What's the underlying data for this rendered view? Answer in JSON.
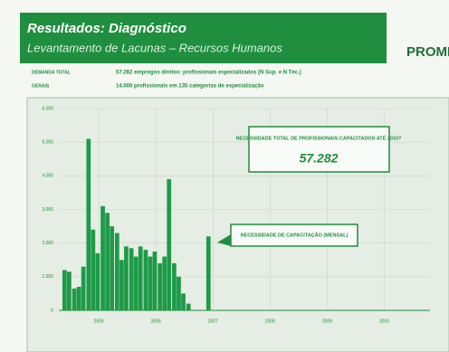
{
  "header": {
    "title": "Resultados: Diagnóstico",
    "subtitle": "Levantamento de Lacunas – Recursos Humanos",
    "logo": "PROMI"
  },
  "info": [
    {
      "label": "DEMANDA TOTAL",
      "text": "57.282 empregos diretos: profissionais especializados (N Sup. e N Téc.)"
    },
    {
      "label": "GERAIS",
      "text": "14.000 profissionais em 135 categorias de especialização"
    }
  ],
  "chart_data": {
    "type": "bar",
    "x": [
      2004.4,
      2004.48,
      2004.57,
      2004.65,
      2004.73,
      2004.82,
      2004.9,
      2004.98,
      2005.07,
      2005.15,
      2005.23,
      2005.32,
      2005.4,
      2005.48,
      2005.57,
      2005.65,
      2005.73,
      2005.82,
      2005.9,
      2005.98,
      2006.07,
      2006.15,
      2006.23,
      2006.32,
      2006.4,
      2006.48,
      2006.57,
      2006.92
    ],
    "values": [
      1200,
      1150,
      650,
      700,
      1300,
      5100,
      2400,
      1700,
      3100,
      2900,
      2500,
      2300,
      1500,
      1900,
      1850,
      1600,
      1900,
      1800,
      1600,
      1750,
      1400,
      1600,
      3900,
      1400,
      1000,
      500,
      200,
      2200
    ],
    "color": "#1e9a48",
    "xlim": [
      2004.3,
      2010.8
    ],
    "xticks": [
      2005,
      2006,
      2007,
      2008,
      2009,
      2010
    ],
    "ylim": [
      0,
      6000
    ],
    "yticks": [
      0,
      {
        "value": 1000,
        "label": "1.000"
      },
      {
        "value": 2000,
        "label": "2.000"
      },
      {
        "value": 3000,
        "label": "3.000"
      },
      {
        "value": 4000,
        "label": "4.000"
      },
      {
        "value": 5000,
        "label": "5.000"
      },
      {
        "value": 6000,
        "label": "6.000"
      }
    ],
    "grid": true,
    "total_box": {
      "label": "NECESSIDADE TOTAL DE PROFISSIONAIS CAPACITADOS ATÉ 2010?",
      "value": "57.282"
    },
    "annotation": "NECESSIDADE DE CAPACITAÇÃO (MENSAL)"
  }
}
